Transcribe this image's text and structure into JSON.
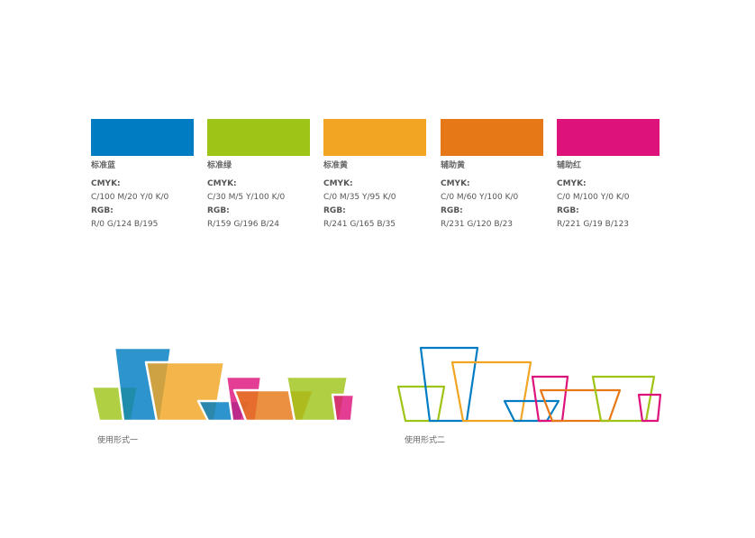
{
  "swatches": [
    {
      "name": "标准蓝",
      "cmyk_label": "CMYK:",
      "cmyk": "C/100  M/20  Y/0  K/0",
      "rgb_label": "RGB:",
      "rgb": "R/0  G/124  B/195",
      "color": "#007CC3"
    },
    {
      "name": "标准绿",
      "cmyk_label": "CMYK:",
      "cmyk": "C/30  M/5  Y/100  K/0",
      "rgb_label": "RGB:",
      "rgb": "R/159  G/196  B/24",
      "color": "#9FC418"
    },
    {
      "name": "标准黄",
      "cmyk_label": "CMYK:",
      "cmyk": "C/0  M/35  Y/95  K/0",
      "rgb_label": "RGB:",
      "rgb": "R/241  G/165  B/35",
      "color": "#F1A523"
    },
    {
      "name": "辅助黄",
      "cmyk_label": "CMYK:",
      "cmyk": "C/0  M/60  Y/100  K/0",
      "rgb_label": "RGB:",
      "rgb": "R/231  G/120  B/23",
      "color": "#E77817"
    },
    {
      "name": "辅助红",
      "cmyk_label": "CMYK:",
      "cmyk": "C/0  M/100  Y/0  K/0",
      "rgb_label": "RGB:",
      "rgb": "R/221  G/19  B/123",
      "color": "#DD137B"
    }
  ],
  "usage": [
    {
      "caption": "使用形式一",
      "style": "filled"
    },
    {
      "caption": "使用形式二",
      "style": "outline"
    }
  ]
}
